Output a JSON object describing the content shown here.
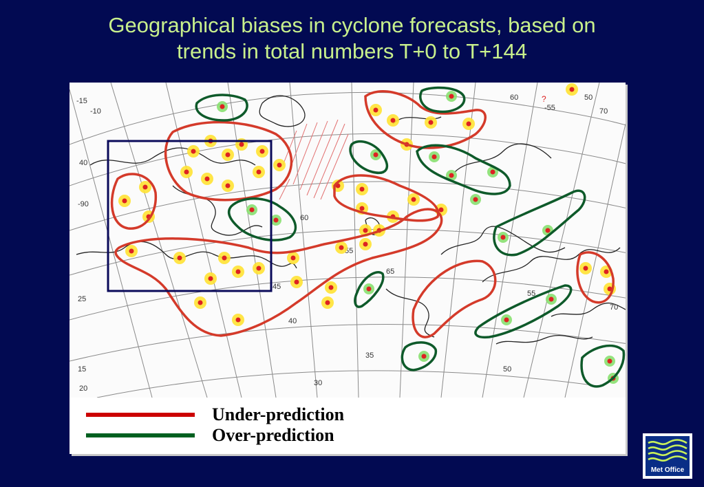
{
  "title": {
    "line1": "Geographical biases in cyclone forecasts, based on",
    "line2": "trends in total numbers T+0 to T+144"
  },
  "colors": {
    "background": "#020a52",
    "title": "#c8f08c",
    "under_prediction": "#cc0000",
    "over_prediction": "#006020",
    "dot_yellow": "#ffe233",
    "dot_green": "#88e070",
    "dot_red": "#dd2222"
  },
  "legend": {
    "items": [
      {
        "label": "Under-prediction",
        "color": "#cc0000"
      },
      {
        "label": "Over-prediction",
        "color": "#006020"
      }
    ]
  },
  "map": {
    "latitude_labels": [
      "20",
      "25",
      "30",
      "35",
      "40",
      "45",
      "50",
      "55",
      "60",
      "65",
      "70",
      "15"
    ],
    "longitude_labels": [
      "-10",
      "-15",
      "40",
      "-90",
      "-55",
      "50",
      "60",
      "55",
      "70"
    ],
    "annotation": "?"
  },
  "logo": {
    "text": "Met Office",
    "icon": "met-office-waves-icon"
  }
}
